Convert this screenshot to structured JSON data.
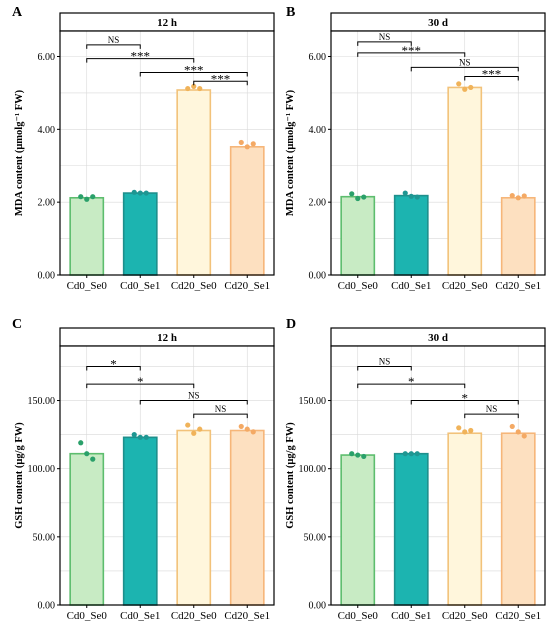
{
  "figure": {
    "colors": {
      "Cd0_Se0": {
        "fill": "#c8ebc4",
        "stroke": "#5dbd6e"
      },
      "Cd0_Se1": {
        "fill": "#1cb4b0",
        "stroke": "#1e8f8c"
      },
      "Cd20_Se0": {
        "fill": "#fff6dc",
        "stroke": "#f2c27a"
      },
      "Cd20_Se1": {
        "fill": "#fde0c0",
        "stroke": "#f6b679"
      },
      "Cd0_Se0_pt": "#2aa06a",
      "Cd0_Se1_pt": "#1e9692",
      "Cd20_Se0_pt": "#f0b35a",
      "Cd20_Se1_pt": "#f4a964",
      "strip": "#ffffff",
      "grid": "#d9d9d9"
    }
  },
  "chart_data": [
    {
      "type": "bar",
      "panel_letter": "A",
      "title": "12 h",
      "xlabel": "",
      "ylabel": "MDA content (μmolg⁻¹ FW)",
      "ylim": [
        0,
        6.7
      ],
      "yticks": [
        0,
        2,
        4,
        6
      ],
      "ytick_labels": [
        "0.00",
        "2.00",
        "4.00",
        "6.00"
      ],
      "categories": [
        "Cd0_Se0",
        "Cd0_Se1",
        "Cd20_Se0",
        "Cd20_Se1"
      ],
      "values": [
        2.12,
        2.25,
        5.08,
        3.52
      ],
      "points": [
        [
          2.15,
          2.08,
          2.15
        ],
        [
          2.27,
          2.25,
          2.25
        ],
        [
          5.12,
          5.18,
          5.12
        ],
        [
          3.64,
          3.52,
          3.6
        ]
      ],
      "comparisons": [
        {
          "from": 0,
          "to": 1,
          "y": 6.32,
          "label": "NS"
        },
        {
          "from": 0,
          "to": 2,
          "y": 5.94,
          "label": "***"
        },
        {
          "from": 1,
          "to": 3,
          "y": 5.56,
          "label": "***"
        },
        {
          "from": 2,
          "to": 3,
          "y": 5.32,
          "label": "***"
        }
      ]
    },
    {
      "type": "bar",
      "panel_letter": "B",
      "title": "30 d",
      "xlabel": "",
      "ylabel": "MDA content (μmolg⁻¹ FW)",
      "ylim": [
        0,
        6.7
      ],
      "yticks": [
        0,
        2,
        4,
        6
      ],
      "ytick_labels": [
        "0.00",
        "2.00",
        "4.00",
        "6.00"
      ],
      "categories": [
        "Cd0_Se0",
        "Cd0_Se1",
        "Cd20_Se0",
        "Cd20_Se1"
      ],
      "values": [
        2.15,
        2.18,
        5.15,
        2.12
      ],
      "points": [
        [
          2.23,
          2.1,
          2.14
        ],
        [
          2.25,
          2.16,
          2.14
        ],
        [
          5.25,
          5.1,
          5.15
        ],
        [
          2.18,
          2.12,
          2.17
        ]
      ],
      "comparisons": [
        {
          "from": 0,
          "to": 1,
          "y": 6.4,
          "label": "NS"
        },
        {
          "from": 0,
          "to": 2,
          "y": 6.1,
          "label": "***"
        },
        {
          "from": 1,
          "to": 3,
          "y": 5.7,
          "label": "NS"
        },
        {
          "from": 2,
          "to": 3,
          "y": 5.45,
          "label": "***"
        }
      ]
    },
    {
      "type": "bar",
      "panel_letter": "C",
      "title": "12 h",
      "xlabel": "",
      "ylabel": "GSH content (μg/g FW)",
      "ylim": [
        0,
        190
      ],
      "yticks": [
        0,
        50,
        100,
        150
      ],
      "ytick_labels": [
        "0.00",
        "50.00",
        "100.00",
        "150.00"
      ],
      "categories": [
        "Cd0_Se0",
        "Cd0_Se1",
        "Cd20_Se0",
        "Cd20_Se1"
      ],
      "values": [
        111,
        123,
        128,
        128
      ],
      "points": [
        [
          119,
          111,
          107
        ],
        [
          125,
          123,
          123
        ],
        [
          132,
          126,
          129
        ],
        [
          131,
          129,
          127
        ]
      ],
      "comparisons": [
        {
          "from": 0,
          "to": 1,
          "y": 175,
          "label": "*"
        },
        {
          "from": 0,
          "to": 2,
          "y": 162,
          "label": "*"
        },
        {
          "from": 1,
          "to": 3,
          "y": 150,
          "label": "NS"
        },
        {
          "from": 2,
          "to": 3,
          "y": 140,
          "label": "NS"
        }
      ]
    },
    {
      "type": "bar",
      "panel_letter": "D",
      "title": "30 d",
      "xlabel": "",
      "ylabel": "GSH content (μg/g FW)",
      "ylim": [
        0,
        190
      ],
      "yticks": [
        0,
        50,
        100,
        150
      ],
      "ytick_labels": [
        "0.00",
        "50.00",
        "100.00",
        "150.00"
      ],
      "categories": [
        "Cd0_Se0",
        "Cd0_Se1",
        "Cd20_Se0",
        "Cd20_Se1"
      ],
      "values": [
        110,
        111,
        126,
        126
      ],
      "points": [
        [
          111,
          110,
          109
        ],
        [
          111,
          111,
          111
        ],
        [
          130,
          127,
          128
        ],
        [
          131,
          127,
          124
        ]
      ],
      "comparisons": [
        {
          "from": 0,
          "to": 1,
          "y": 175,
          "label": "NS"
        },
        {
          "from": 0,
          "to": 2,
          "y": 162,
          "label": "*"
        },
        {
          "from": 1,
          "to": 3,
          "y": 150,
          "label": "*"
        },
        {
          "from": 2,
          "to": 3,
          "y": 140,
          "label": "NS"
        }
      ]
    }
  ]
}
